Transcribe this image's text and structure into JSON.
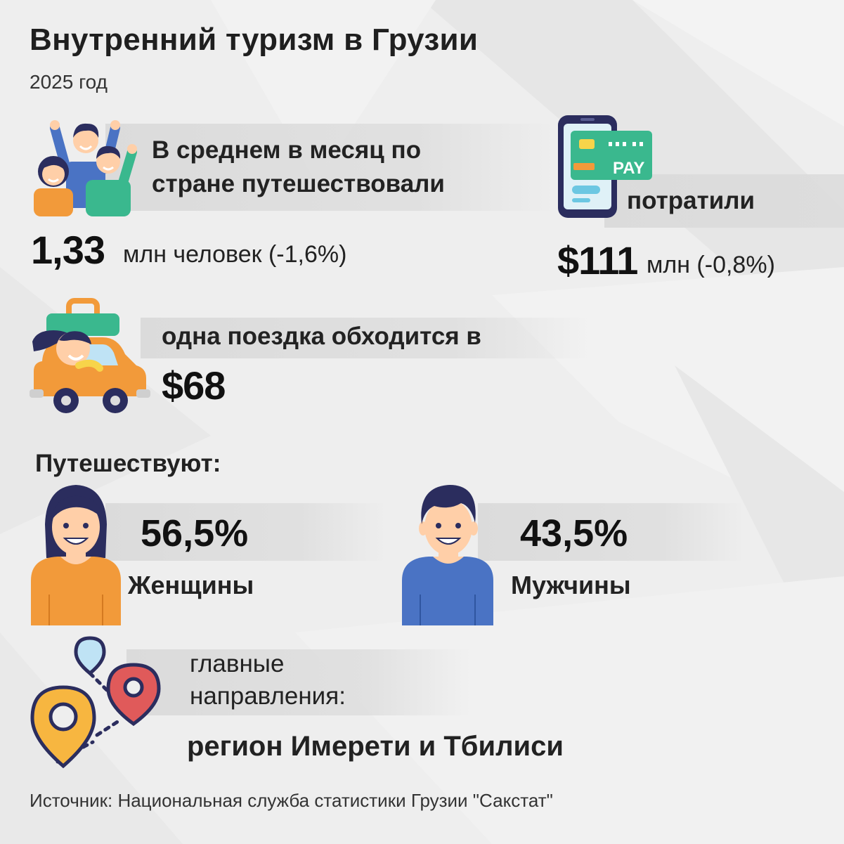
{
  "header": {
    "title": "Внутренний туризм в Грузии",
    "subtitle": "2025 год"
  },
  "travelers": {
    "label_line1": "В среднем в месяц по",
    "label_line2": "стране путешествовали",
    "value": "1,33",
    "unit": "млн человек (-1,6%)",
    "icon": "group-of-people-icon"
  },
  "spending": {
    "label": "потратили",
    "value": "$111",
    "unit": "млн (-0,8%)",
    "icon": "phone-pay-icon",
    "card_text": "PAY"
  },
  "trip_cost": {
    "label": "одна поездка обходится в",
    "value": "$68",
    "icon": "car-traveler-icon"
  },
  "gender": {
    "heading": "Путешествуют:",
    "women": {
      "value": "56,5%",
      "label": "Женщины",
      "icon": "woman-icon"
    },
    "men": {
      "value": "43,5%",
      "label": "Мужчины",
      "icon": "man-icon"
    }
  },
  "destinations": {
    "label_line1": "главные",
    "label_line2": "направления:",
    "value": "регион Имерети и Тбилиси",
    "icon": "map-pins-icon"
  },
  "footer": {
    "source": "Источник: Национальная служба статистики Грузии \"Сакстат\""
  },
  "colors": {
    "background": "#eeeeee",
    "band": "#dadada",
    "orange": "#f29a3a",
    "green": "#3ab88e",
    "blue": "#4a73c4",
    "navy": "#2b2d5e",
    "skin": "#ffcfa8",
    "red": "#e05a5a",
    "yellow": "#f7b640",
    "lightblue": "#bfe3f5"
  }
}
